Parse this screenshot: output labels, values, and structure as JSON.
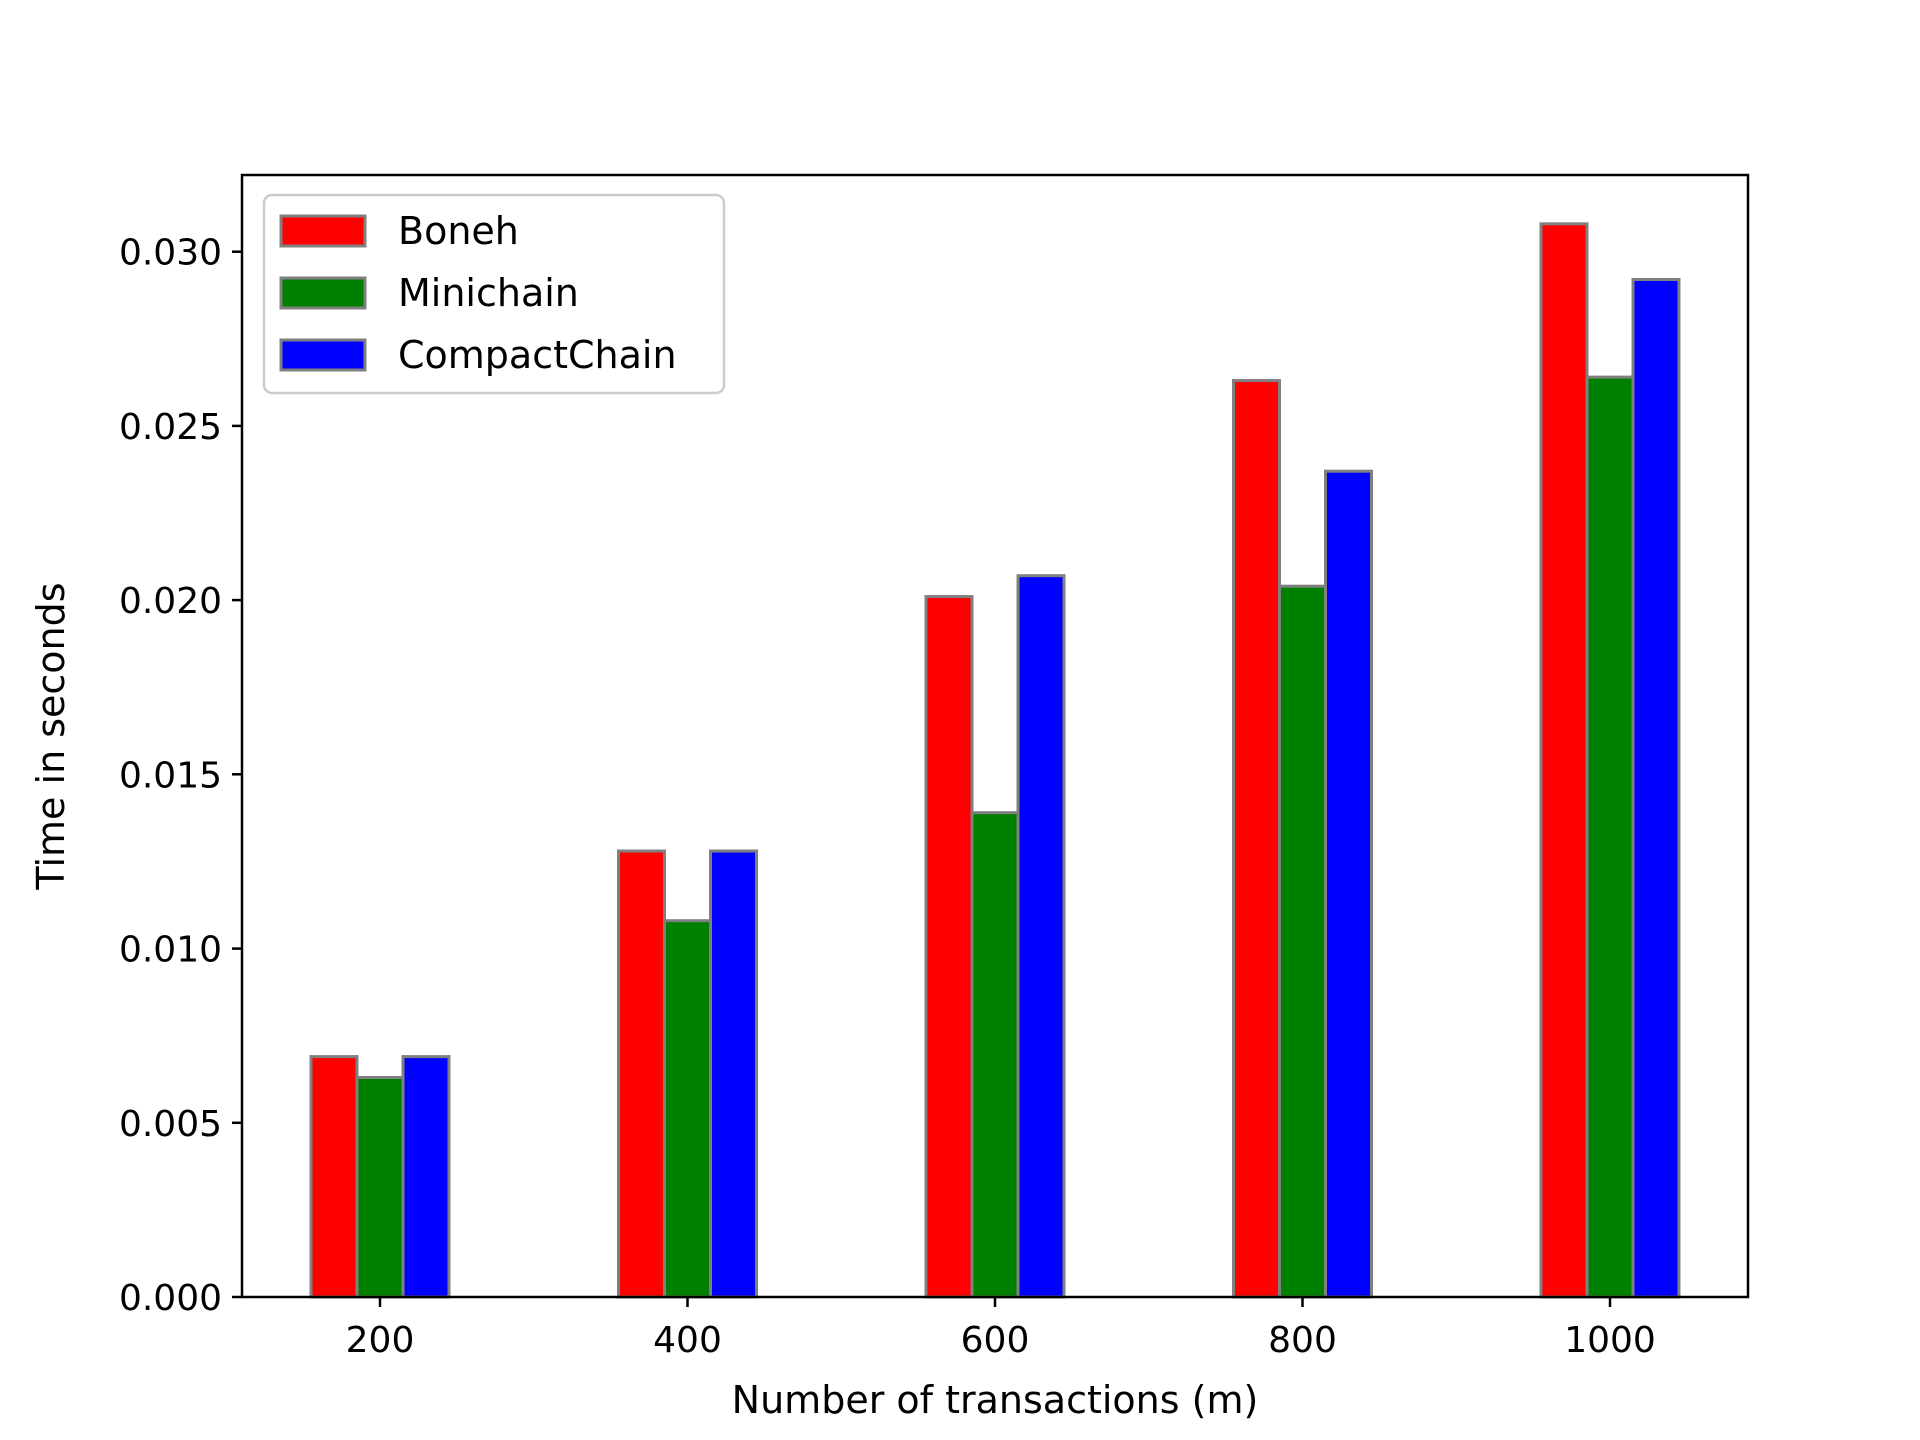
{
  "chart_data": {
    "type": "bar",
    "title": "",
    "xlabel": "Number of transactions (m)",
    "ylabel": "Time in seconds",
    "categories": [
      "200",
      "400",
      "600",
      "800",
      "1000"
    ],
    "series": [
      {
        "name": "Boneh",
        "color": "#ff0000",
        "values": [
          0.0069,
          0.0128,
          0.0201,
          0.0263,
          0.0308
        ]
      },
      {
        "name": "Minichain",
        "color": "#008000",
        "values": [
          0.0063,
          0.0108,
          0.0139,
          0.0204,
          0.0264
        ]
      },
      {
        "name": "CompactChain",
        "color": "#0000ff",
        "values": [
          0.0069,
          0.0128,
          0.0207,
          0.0237,
          0.0292
        ]
      }
    ],
    "ylim": [
      0,
      0.0322
    ],
    "yticks": [
      "0.000",
      "0.005",
      "0.010",
      "0.015",
      "0.020",
      "0.025",
      "0.030"
    ],
    "ytick_values": [
      0,
      0.005,
      0.01,
      0.015,
      0.02,
      0.025,
      0.03
    ],
    "bar_edge_color": "#808080",
    "legend_position": "top-left",
    "grid": false
  }
}
